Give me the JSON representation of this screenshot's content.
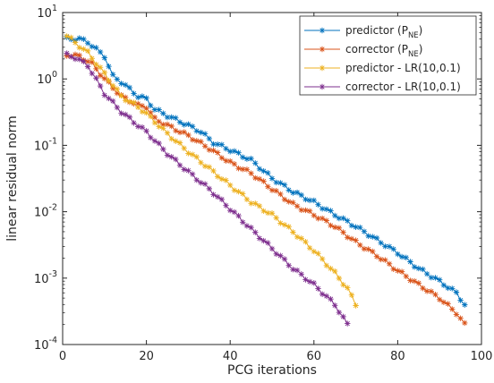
{
  "chart_data": {
    "type": "line",
    "title": "",
    "xlabel": "PCG iterations",
    "ylabel": "linear residual norm",
    "xlim": [
      0,
      100
    ],
    "ylim": [
      0.0001,
      10
    ],
    "yscale": "log",
    "grid": false,
    "marker": "*",
    "legend_position": "top-right",
    "x_ticks": [
      {
        "value": 0,
        "label": "0"
      },
      {
        "value": 20,
        "label": "20"
      },
      {
        "value": 40,
        "label": "40"
      },
      {
        "value": 60,
        "label": "60"
      },
      {
        "value": 80,
        "label": "80"
      },
      {
        "value": 100,
        "label": "100"
      }
    ],
    "y_ticks": [
      {
        "value": 0.0001,
        "base": "10",
        "exp": "-4"
      },
      {
        "value": 0.001,
        "base": "10",
        "exp": "-3"
      },
      {
        "value": 0.01,
        "base": "10",
        "exp": "-2"
      },
      {
        "value": 0.1,
        "base": "10",
        "exp": "-1"
      },
      {
        "value": 1,
        "base": "10",
        "exp": "0"
      },
      {
        "value": 10,
        "base": "10",
        "exp": "1"
      }
    ],
    "series": [
      {
        "name": "predictor (P_NE)",
        "legend_main": "predictor (P",
        "legend_sub": "NE",
        "legend_tail": ")",
        "color": "#0072BD",
        "n_points": 96,
        "anchors": [
          [
            1,
            4.0
          ],
          [
            4,
            4.0
          ],
          [
            6,
            3.6
          ],
          [
            10,
            2.2
          ],
          [
            12,
            1.1
          ],
          [
            14,
            0.9
          ],
          [
            18,
            0.55
          ],
          [
            20,
            0.5
          ],
          [
            22,
            0.35
          ],
          [
            25,
            0.28
          ],
          [
            30,
            0.2
          ],
          [
            33,
            0.16
          ],
          [
            36,
            0.11
          ],
          [
            40,
            0.085
          ],
          [
            45,
            0.06
          ],
          [
            50,
            0.032
          ],
          [
            55,
            0.02
          ],
          [
            60,
            0.014
          ],
          [
            65,
            0.009
          ],
          [
            70,
            0.006
          ],
          [
            75,
            0.0038
          ],
          [
            80,
            0.0024
          ],
          [
            85,
            0.0014
          ],
          [
            90,
            0.0009
          ],
          [
            94,
            0.0006
          ],
          [
            96,
            0.0004
          ]
        ]
      },
      {
        "name": "corrector (P_NE)",
        "legend_main": "corrector (P",
        "legend_sub": "NE",
        "legend_tail": ")",
        "color": "#D95319",
        "n_points": 96,
        "anchors": [
          [
            1,
            2.3
          ],
          [
            4,
            2.2
          ],
          [
            7,
            1.7
          ],
          [
            10,
            1.0
          ],
          [
            14,
            0.55
          ],
          [
            18,
            0.4
          ],
          [
            20,
            0.38
          ],
          [
            22,
            0.25
          ],
          [
            25,
            0.2
          ],
          [
            30,
            0.14
          ],
          [
            35,
            0.09
          ],
          [
            40,
            0.055
          ],
          [
            45,
            0.038
          ],
          [
            50,
            0.022
          ],
          [
            55,
            0.013
          ],
          [
            60,
            0.009
          ],
          [
            65,
            0.006
          ],
          [
            70,
            0.0035
          ],
          [
            75,
            0.0022
          ],
          [
            80,
            0.0013
          ],
          [
            85,
            0.0008
          ],
          [
            90,
            0.0005
          ],
          [
            94,
            0.0003
          ],
          [
            96,
            0.0002
          ]
        ]
      },
      {
        "name": "predictor - LR(10,0.1)",
        "legend_main": "predictor - LR(10,0.1)",
        "legend_sub": "",
        "legend_tail": "",
        "color": "#EDB120",
        "n_points": 70,
        "anchors": [
          [
            1,
            4.5
          ],
          [
            3,
            3.5
          ],
          [
            6,
            2.5
          ],
          [
            10,
            1.2
          ],
          [
            14,
            0.55
          ],
          [
            18,
            0.38
          ],
          [
            20,
            0.3
          ],
          [
            25,
            0.15
          ],
          [
            30,
            0.08
          ],
          [
            35,
            0.045
          ],
          [
            40,
            0.025
          ],
          [
            45,
            0.014
          ],
          [
            50,
            0.009
          ],
          [
            55,
            0.005
          ],
          [
            60,
            0.0026
          ],
          [
            65,
            0.0012
          ],
          [
            68,
            0.0007
          ],
          [
            70,
            0.0004
          ]
        ]
      },
      {
        "name": "corrector - LR(10,0.1)",
        "legend_main": "corrector - LR(10,0.1)",
        "legend_sub": "",
        "legend_tail": "",
        "color": "#7E2F8E",
        "n_points": 68,
        "anchors": [
          [
            1,
            2.3
          ],
          [
            3,
            2.1
          ],
          [
            6,
            1.6
          ],
          [
            10,
            0.6
          ],
          [
            14,
            0.32
          ],
          [
            18,
            0.2
          ],
          [
            20,
            0.16
          ],
          [
            25,
            0.075
          ],
          [
            30,
            0.04
          ],
          [
            35,
            0.022
          ],
          [
            40,
            0.011
          ],
          [
            45,
            0.0055
          ],
          [
            50,
            0.0028
          ],
          [
            55,
            0.0014
          ],
          [
            60,
            0.0008
          ],
          [
            65,
            0.0004
          ],
          [
            68,
            0.0002
          ]
        ]
      }
    ]
  }
}
